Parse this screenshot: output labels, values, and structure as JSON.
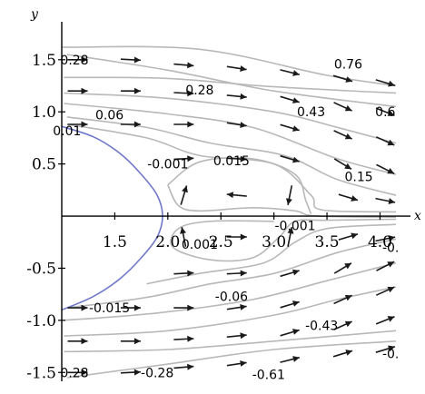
{
  "chart_data": {
    "type": "streamplot",
    "xlabel": "x",
    "ylabel": "y",
    "xlim": [
      1.0,
      4.15
    ],
    "ylim": [
      -1.55,
      1.62
    ],
    "x_ticks": [
      {
        "value": 1.5,
        "label": "1.5"
      },
      {
        "value": 2.0,
        "label": "2.0"
      },
      {
        "value": 2.5,
        "label": "2.5"
      },
      {
        "value": 3.0,
        "label": "3.0"
      },
      {
        "value": 3.5,
        "label": "3.5"
      },
      {
        "value": 4.0,
        "label": "4.0"
      }
    ],
    "y_ticks": [
      {
        "value": 1.5,
        "label": "1.5"
      },
      {
        "value": 1.0,
        "label": "1.0"
      },
      {
        "value": 0.5,
        "label": "0.5"
      },
      {
        "value": -0.5,
        "label": "-0.5"
      },
      {
        "value": -1.0,
        "label": "-1.0"
      },
      {
        "value": -1.5,
        "label": "-1.5"
      }
    ],
    "contour_labels": [
      {
        "x": 1.12,
        "y": 1.5,
        "text": "0.28"
      },
      {
        "x": 2.3,
        "y": 1.21,
        "text": "0.28"
      },
      {
        "x": 3.7,
        "y": 1.46,
        "text": "0.76"
      },
      {
        "x": 1.45,
        "y": 0.97,
        "text": "0.06"
      },
      {
        "x": 3.35,
        "y": 1.0,
        "text": "0.43"
      },
      {
        "x": 4.05,
        "y": 1.0,
        "text": "0.6"
      },
      {
        "x": 1.05,
        "y": 0.82,
        "text": "0.01"
      },
      {
        "x": 2.0,
        "y": 0.5,
        "text": "-0.001"
      },
      {
        "x": 2.6,
        "y": 0.53,
        "text": "0.015"
      },
      {
        "x": 3.8,
        "y": 0.38,
        "text": "0.15"
      },
      {
        "x": 3.2,
        "y": -0.09,
        "text": "-0.001"
      },
      {
        "x": 2.3,
        "y": -0.27,
        "text": "0.001"
      },
      {
        "x": 1.45,
        "y": -0.88,
        "text": "-0.015"
      },
      {
        "x": 2.6,
        "y": -0.77,
        "text": "-0.06"
      },
      {
        "x": 3.45,
        "y": -1.05,
        "text": "-0.43"
      },
      {
        "x": 4.1,
        "y": -1.32,
        "text": "-0."
      },
      {
        "x": 4.1,
        "y": -0.3,
        "text": "-0."
      },
      {
        "x": 1.12,
        "y": -1.5,
        "text": "0.28"
      },
      {
        "x": 1.9,
        "y": -1.5,
        "text": "-0.28"
      },
      {
        "x": 2.95,
        "y": -1.52,
        "text": "-0.61"
      }
    ],
    "curve": {
      "name": "boundary",
      "color": "#6f78c8",
      "points": [
        [
          1.0,
          0.86
        ],
        [
          1.3,
          0.76
        ],
        [
          1.55,
          0.6
        ],
        [
          1.75,
          0.4
        ],
        [
          1.9,
          0.2
        ],
        [
          1.95,
          0.0
        ],
        [
          1.9,
          -0.2
        ],
        [
          1.75,
          -0.4
        ],
        [
          1.55,
          -0.6
        ],
        [
          1.3,
          -0.77
        ],
        [
          1.0,
          -0.9
        ]
      ]
    },
    "streamlines": [
      {
        "points": [
          [
            1.05,
            1.55
          ],
          [
            2.0,
            1.4
          ],
          [
            3.0,
            1.2
          ],
          [
            4.15,
            1.05
          ]
        ]
      },
      {
        "points": [
          [
            1.02,
            1.33
          ],
          [
            2.0,
            1.32
          ],
          [
            3.0,
            1.24
          ],
          [
            4.15,
            1.18
          ]
        ]
      },
      {
        "points": [
          [
            1.02,
            1.18
          ],
          [
            2.0,
            1.13
          ],
          [
            3.0,
            1.0
          ],
          [
            3.6,
            0.85
          ],
          [
            4.15,
            0.7
          ]
        ]
      },
      {
        "points": [
          [
            1.02,
            1.08
          ],
          [
            2.0,
            0.98
          ],
          [
            2.8,
            0.85
          ],
          [
            3.6,
            0.55
          ],
          [
            4.15,
            0.4
          ]
        ]
      },
      {
        "points": [
          [
            1.0,
            1.62
          ],
          [
            2.3,
            1.6
          ],
          [
            3.5,
            1.35
          ],
          [
            4.15,
            1.25
          ]
        ]
      },
      {
        "points": [
          [
            1.05,
            0.95
          ],
          [
            1.8,
            0.85
          ],
          [
            2.4,
            0.7
          ],
          [
            3.1,
            0.58
          ],
          [
            3.6,
            0.35
          ],
          [
            4.15,
            0.2
          ]
        ]
      },
      {
        "points": [
          [
            1.05,
            0.88
          ],
          [
            1.8,
            0.75
          ],
          [
            2.3,
            0.58
          ],
          [
            3.0,
            0.5
          ],
          [
            3.35,
            0.2
          ],
          [
            3.45,
            0.06
          ],
          [
            4.15,
            0.04
          ]
        ]
      },
      {
        "points": [
          [
            2.0,
            0.3
          ],
          [
            2.3,
            0.52
          ],
          [
            2.8,
            0.55
          ],
          [
            3.2,
            0.4
          ],
          [
            3.3,
            0.15
          ],
          [
            3.35,
            0.02
          ]
        ]
      },
      {
        "points": [
          [
            2.0,
            0.3
          ],
          [
            2.1,
            0.1
          ],
          [
            2.3,
            0.05
          ],
          [
            2.8,
            0.08
          ],
          [
            3.2,
            0.05
          ],
          [
            3.4,
            0.0
          ],
          [
            4.15,
            -0.01
          ]
        ]
      },
      {
        "points": [
          [
            4.15,
            -0.03
          ],
          [
            3.5,
            -0.04
          ],
          [
            3.2,
            -0.05
          ],
          [
            3.05,
            -0.2
          ],
          [
            2.8,
            -0.4
          ],
          [
            2.4,
            -0.42
          ],
          [
            2.05,
            -0.3
          ],
          [
            2.1,
            -0.12
          ],
          [
            2.4,
            -0.05
          ],
          [
            3.0,
            -0.05
          ]
        ]
      },
      {
        "points": [
          [
            1.8,
            -0.65
          ],
          [
            2.3,
            -0.55
          ],
          [
            2.9,
            -0.45
          ],
          [
            3.2,
            -0.25
          ],
          [
            3.5,
            -0.12
          ],
          [
            4.15,
            -0.08
          ]
        ]
      },
      {
        "points": [
          [
            1.05,
            -0.88
          ],
          [
            1.8,
            -0.78
          ],
          [
            2.4,
            -0.65
          ],
          [
            3.0,
            -0.55
          ],
          [
            3.6,
            -0.35
          ],
          [
            4.15,
            -0.22
          ]
        ]
      },
      {
        "points": [
          [
            1.02,
            -1.0
          ],
          [
            1.9,
            -0.93
          ],
          [
            2.8,
            -0.8
          ],
          [
            3.5,
            -0.62
          ],
          [
            4.15,
            -0.45
          ]
        ]
      },
      {
        "points": [
          [
            1.02,
            -1.15
          ],
          [
            2.0,
            -1.1
          ],
          [
            3.0,
            -0.95
          ],
          [
            3.6,
            -0.8
          ],
          [
            4.15,
            -0.68
          ]
        ]
      },
      {
        "points": [
          [
            1.02,
            -1.3
          ],
          [
            2.0,
            -1.28
          ],
          [
            3.0,
            -1.2
          ],
          [
            4.15,
            -1.1
          ]
        ]
      },
      {
        "points": [
          [
            1.05,
            -1.55
          ],
          [
            2.0,
            -1.42
          ],
          [
            3.0,
            -1.28
          ],
          [
            4.15,
            -1.2
          ]
        ]
      }
    ],
    "arrows": [
      {
        "x": 1.15,
        "y": 1.5,
        "dx": 1,
        "dy": 0
      },
      {
        "x": 1.65,
        "y": 1.5,
        "dx": 1,
        "dy": -0.05
      },
      {
        "x": 2.15,
        "y": 1.45,
        "dx": 1,
        "dy": -0.08
      },
      {
        "x": 2.65,
        "y": 1.42,
        "dx": 1,
        "dy": -0.15
      },
      {
        "x": 3.15,
        "y": 1.38,
        "dx": 1,
        "dy": -0.25
      },
      {
        "x": 3.65,
        "y": 1.32,
        "dx": 1,
        "dy": -0.3
      },
      {
        "x": 4.05,
        "y": 1.28,
        "dx": 1,
        "dy": -0.3
      },
      {
        "x": 1.15,
        "y": 1.2,
        "dx": 1,
        "dy": 0
      },
      {
        "x": 1.65,
        "y": 1.2,
        "dx": 1,
        "dy": 0
      },
      {
        "x": 2.15,
        "y": 1.18,
        "dx": 1,
        "dy": -0.05
      },
      {
        "x": 2.65,
        "y": 1.15,
        "dx": 1,
        "dy": -0.1
      },
      {
        "x": 3.15,
        "y": 1.12,
        "dx": 1,
        "dy": -0.3
      },
      {
        "x": 3.65,
        "y": 1.05,
        "dx": 1,
        "dy": -0.45
      },
      {
        "x": 4.05,
        "y": 1.0,
        "dx": 1,
        "dy": -0.4
      },
      {
        "x": 1.15,
        "y": 0.88,
        "dx": 1,
        "dy": 0
      },
      {
        "x": 1.65,
        "y": 0.88,
        "dx": 1,
        "dy": 0
      },
      {
        "x": 2.15,
        "y": 0.88,
        "dx": 1,
        "dy": 0
      },
      {
        "x": 2.65,
        "y": 0.88,
        "dx": 1,
        "dy": -0.15
      },
      {
        "x": 3.15,
        "y": 0.85,
        "dx": 1,
        "dy": -0.3
      },
      {
        "x": 3.65,
        "y": 0.78,
        "dx": 1,
        "dy": -0.45
      },
      {
        "x": 4.05,
        "y": 0.72,
        "dx": 1,
        "dy": -0.45
      },
      {
        "x": 2.15,
        "y": 0.55,
        "dx": 1,
        "dy": 0.05
      },
      {
        "x": 2.65,
        "y": 0.55,
        "dx": 1,
        "dy": -0.05
      },
      {
        "x": 3.15,
        "y": 0.55,
        "dx": 1,
        "dy": -0.3
      },
      {
        "x": 3.65,
        "y": 0.5,
        "dx": 1,
        "dy": -0.6
      },
      {
        "x": 4.05,
        "y": 0.45,
        "dx": 1,
        "dy": -0.5
      },
      {
        "x": 2.15,
        "y": 0.2,
        "dx": 0.3,
        "dy": 1
      },
      {
        "x": 2.65,
        "y": 0.2,
        "dx": -1,
        "dy": 0.1
      },
      {
        "x": 3.15,
        "y": 0.2,
        "dx": -0.2,
        "dy": -1
      },
      {
        "x": 3.7,
        "y": 0.18,
        "dx": 1,
        "dy": -0.3
      },
      {
        "x": 4.05,
        "y": 0.15,
        "dx": 1,
        "dy": -0.2
      },
      {
        "x": 2.15,
        "y": -0.2,
        "dx": -0.2,
        "dy": 1
      },
      {
        "x": 2.65,
        "y": -0.2,
        "dx": 1,
        "dy": 0
      },
      {
        "x": 3.15,
        "y": -0.2,
        "dx": 0.2,
        "dy": 1
      },
      {
        "x": 3.7,
        "y": -0.2,
        "dx": 1,
        "dy": 0.3
      },
      {
        "x": 4.05,
        "y": -0.22,
        "dx": 1,
        "dy": 0.2
      },
      {
        "x": 2.15,
        "y": -0.55,
        "dx": 1,
        "dy": 0.05
      },
      {
        "x": 2.65,
        "y": -0.55,
        "dx": 1,
        "dy": 0.05
      },
      {
        "x": 3.15,
        "y": -0.55,
        "dx": 1,
        "dy": 0.3
      },
      {
        "x": 3.65,
        "y": -0.5,
        "dx": 1,
        "dy": 0.6
      },
      {
        "x": 4.05,
        "y": -0.48,
        "dx": 1,
        "dy": 0.5
      },
      {
        "x": 1.15,
        "y": -0.88,
        "dx": 1,
        "dy": 0
      },
      {
        "x": 1.65,
        "y": -0.88,
        "dx": 1,
        "dy": 0
      },
      {
        "x": 2.15,
        "y": -0.88,
        "dx": 1,
        "dy": 0
      },
      {
        "x": 2.65,
        "y": -0.88,
        "dx": 1,
        "dy": 0.15
      },
      {
        "x": 3.15,
        "y": -0.85,
        "dx": 1,
        "dy": 0.3
      },
      {
        "x": 3.65,
        "y": -0.8,
        "dx": 1,
        "dy": 0.45
      },
      {
        "x": 4.05,
        "y": -0.72,
        "dx": 1,
        "dy": 0.45
      },
      {
        "x": 1.15,
        "y": -1.2,
        "dx": 1,
        "dy": 0
      },
      {
        "x": 1.65,
        "y": -1.2,
        "dx": 1,
        "dy": 0
      },
      {
        "x": 2.15,
        "y": -1.18,
        "dx": 1,
        "dy": 0.05
      },
      {
        "x": 2.65,
        "y": -1.15,
        "dx": 1,
        "dy": 0.1
      },
      {
        "x": 3.15,
        "y": -1.12,
        "dx": 1,
        "dy": 0.3
      },
      {
        "x": 3.65,
        "y": -1.05,
        "dx": 1,
        "dy": 0.45
      },
      {
        "x": 4.05,
        "y": -1.0,
        "dx": 1,
        "dy": 0.4
      },
      {
        "x": 1.15,
        "y": -1.5,
        "dx": 1,
        "dy": 0
      },
      {
        "x": 1.65,
        "y": -1.5,
        "dx": 1,
        "dy": 0.05
      },
      {
        "x": 2.15,
        "y": -1.45,
        "dx": 1,
        "dy": 0.08
      },
      {
        "x": 2.65,
        "y": -1.42,
        "dx": 1,
        "dy": 0.15
      },
      {
        "x": 3.15,
        "y": -1.38,
        "dx": 1,
        "dy": 0.25
      },
      {
        "x": 3.65,
        "y": -1.32,
        "dx": 1,
        "dy": 0.3
      },
      {
        "x": 4.05,
        "y": -1.28,
        "dx": 1,
        "dy": 0.3
      }
    ],
    "grid": false,
    "legend": "none"
  }
}
